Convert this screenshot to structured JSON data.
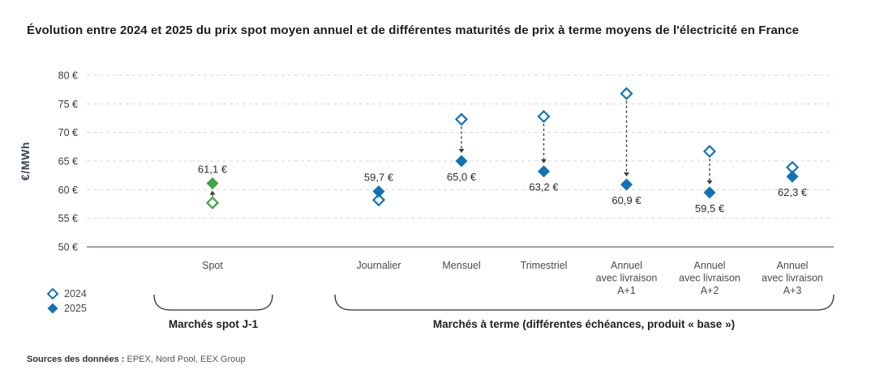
{
  "page": {
    "title": "Évolution entre 2024 et 2025 du prix spot moyen annuel et de différentes maturités de prix à terme moyens de l'électricité en France",
    "source_label": "Sources des données :",
    "source_value": "EPEX, Nord Pool, EEX Group"
  },
  "groups": {
    "spot_label": "Marchés spot J-1",
    "terme_label": "Marchés à terme (différentes échéances, produit « base »)"
  },
  "chart_data": {
    "type": "scatter",
    "title": "Évolution entre 2024 et 2025 du prix spot moyen annuel et de différentes maturités de prix à terme moyens de l'électricité en France",
    "xlabel": "",
    "ylabel": "€/MWh",
    "ylim": [
      50,
      80
    ],
    "yticks": [
      50,
      55,
      60,
      65,
      70,
      75,
      80
    ],
    "ytick_suffix": " €",
    "grid": "horizontal-dashed",
    "legend_position": "bottom-left",
    "colors": {
      "blue": "#1272b8",
      "green": "#3fa546"
    },
    "categories": [
      "Spot",
      "Journalier",
      "Mensuel",
      "Trimestriel",
      "Annuel avec livraison A+1",
      "Annuel avec livraison A+2",
      "Annuel avec livraison A+3"
    ],
    "series": [
      {
        "name": "2024",
        "marker": "open-diamond",
        "estimated": true,
        "values": [
          57.7,
          58.2,
          72.3,
          72.8,
          76.8,
          66.7,
          63.9
        ]
      },
      {
        "name": "2025",
        "marker": "filled-diamond",
        "values": [
          61.1,
          59.7,
          65.0,
          63.2,
          60.9,
          59.5,
          62.3
        ]
      }
    ],
    "value_labels": [
      "61,1 €",
      "59,7 €",
      "65,0 €",
      "63,2 €",
      "60,9 €",
      "59,5 €",
      "62,3 €"
    ],
    "points": [
      {
        "category_lines": [
          "Spot"
        ],
        "v2024": 57.7,
        "v2025": 61.1,
        "label": "61,1 €",
        "label_pos": "above",
        "color": "#3fa546",
        "arrow": "up"
      },
      {
        "category_lines": [
          "Journalier"
        ],
        "v2024": 58.2,
        "v2025": 59.7,
        "label": "59,7 €",
        "label_pos": "above",
        "color": "#1272b8",
        "arrow": "none"
      },
      {
        "category_lines": [
          "Mensuel"
        ],
        "v2024": 72.3,
        "v2025": 65.0,
        "label": "65,0 €",
        "label_pos": "below",
        "color": "#1272b8",
        "arrow": "down"
      },
      {
        "category_lines": [
          "Trimestriel"
        ],
        "v2024": 72.8,
        "v2025": 63.2,
        "label": "63,2 €",
        "label_pos": "below",
        "color": "#1272b8",
        "arrow": "down"
      },
      {
        "category_lines": [
          "Annuel",
          "avec livraison",
          "A+1"
        ],
        "v2024": 76.8,
        "v2025": 60.9,
        "label": "60,9 €",
        "label_pos": "below",
        "color": "#1272b8",
        "arrow": "down"
      },
      {
        "category_lines": [
          "Annuel",
          "avec livraison",
          "A+2"
        ],
        "v2024": 66.7,
        "v2025": 59.5,
        "label": "59,5 €",
        "label_pos": "below",
        "color": "#1272b8",
        "arrow": "down"
      },
      {
        "category_lines": [
          "Annuel",
          "avec livraison",
          "A+3"
        ],
        "v2024": 63.9,
        "v2025": 62.3,
        "label": "62,3 €",
        "label_pos": "below",
        "color": "#1272b8",
        "arrow": "none"
      }
    ]
  }
}
